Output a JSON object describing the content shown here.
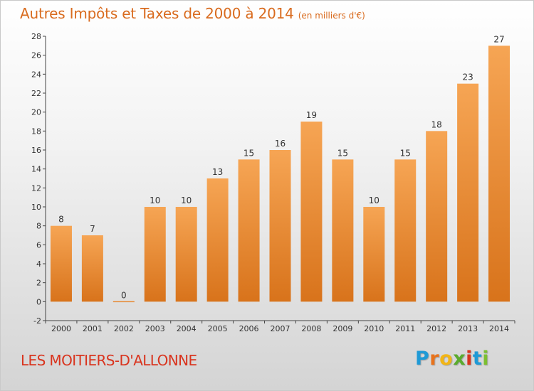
{
  "title": "Autres Impôts et Taxes de 2000 à 2014",
  "subtitle": "(en milliers d'€)",
  "place": "LES MOITIERS-D'ALLONNE",
  "logo": {
    "letters": [
      "P",
      "r",
      "o",
      "x",
      "i",
      "t",
      "i"
    ],
    "colors": [
      "#1f9ad6",
      "#e8731c",
      "#f2b516",
      "#5aab2d",
      "#d9341e",
      "#1f9ad6",
      "#7cbf30"
    ]
  },
  "colors": {
    "bar_top": "#f6a554",
    "bar_bottom": "#d8731b",
    "title": "#d96b1e",
    "place": "#d9341e"
  },
  "chart_data": {
    "type": "bar",
    "categories": [
      "2000",
      "2001",
      "2002",
      "2003",
      "2004",
      "2005",
      "2006",
      "2007",
      "2008",
      "2009",
      "2010",
      "2011",
      "2012",
      "2013",
      "2014"
    ],
    "values": [
      8,
      7,
      0,
      10,
      10,
      13,
      15,
      16,
      19,
      15,
      10,
      15,
      18,
      23,
      27
    ],
    "data_labels": [
      "8",
      "7",
      "0",
      "10",
      "10",
      "13",
      "15",
      "16",
      "19",
      "15",
      "10",
      "15",
      "18",
      "23",
      "27"
    ],
    "yticks": [
      "-2",
      "0",
      "2",
      "4",
      "6",
      "8",
      "10",
      "12",
      "14",
      "16",
      "18",
      "20",
      "22",
      "24",
      "26",
      "28"
    ],
    "ylim": [
      -2,
      28
    ],
    "grid": false,
    "legend": "none"
  }
}
